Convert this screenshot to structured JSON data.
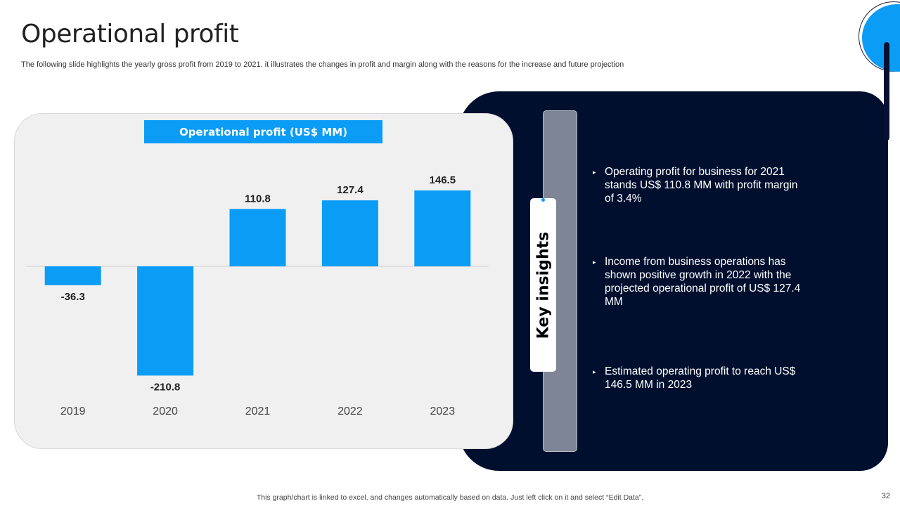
{
  "page": {
    "title": "Operational profit",
    "subtitle": "The following slide highlights the yearly gross profit from 2019 to  2021. it illustrates the changes in profit and margin along with the reasons  for the increase and future projection",
    "footer": "This graph/chart is linked to excel,  and changes automatically based on data. Just left click on it and select “Edit Data”.",
    "page_number": "32"
  },
  "colors": {
    "accent": "#0b9cf6",
    "dark_panel": "#000f2e"
  },
  "chart_data": {
    "type": "bar",
    "title": "Operational profit (US$ MM)",
    "categories": [
      "2019",
      "2020",
      "2021",
      "2022",
      "2023"
    ],
    "values": [
      -36.3,
      -210.8,
      110.8,
      127.4,
      146.5
    ],
    "data_labels": [
      "-36.3",
      "-210.8",
      "110.8",
      "127.4",
      "146.5"
    ],
    "xlabel": "",
    "ylabel": "",
    "ylim": [
      -210.8,
      146.5
    ],
    "grid": false,
    "legend": "none"
  },
  "insights": {
    "label": "Key insights",
    "bullet_marker": "▸",
    "items": [
      "Operating profit for business for 2021 stands US$ 110.8 MM with profit margin of 3.4%",
      "Income from business operations has shown positive growth in 2022 with the projected operational profit of US$ 127.4 MM",
      "Estimated  operating profit to reach US$ 146.5 MM in 2023"
    ]
  }
}
